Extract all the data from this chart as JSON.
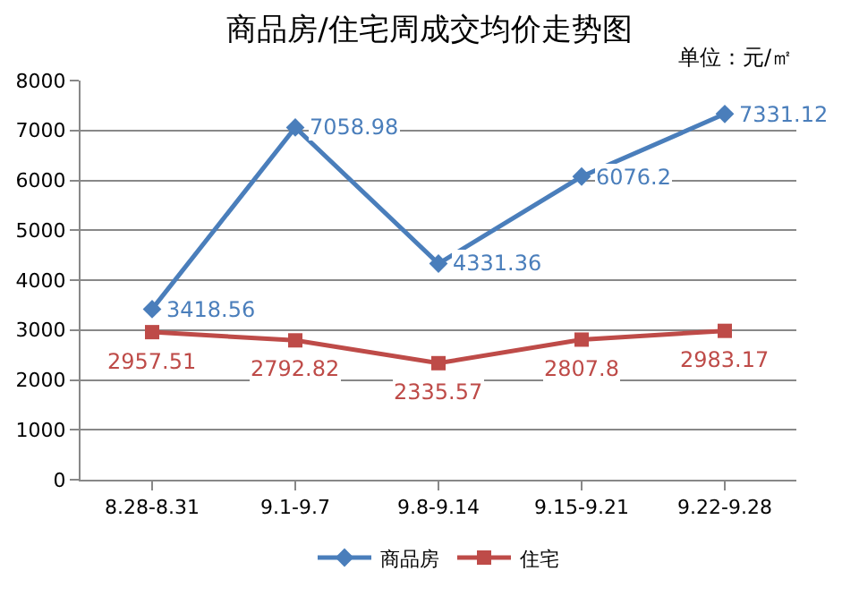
{
  "chart_data": {
    "type": "line",
    "title": "商品房/住宅周成交均价走势图",
    "annotations": [
      "单位：元/㎡"
    ],
    "categories": [
      "8.28-8.31",
      "9.1-9.7",
      "9.8-9.14",
      "9.15-9.21",
      "9.22-9.28"
    ],
    "series": [
      {
        "name": "商品房",
        "color": "#4a7ebb",
        "marker": "diamond",
        "values": [
          3418.56,
          7058.98,
          4331.36,
          6076.2,
          7331.12
        ]
      },
      {
        "name": "住宅",
        "color": "#be4b48",
        "marker": "square",
        "values": [
          2957.51,
          2792.82,
          2335.57,
          2807.8,
          2983.17
        ]
      }
    ],
    "ylim": [
      0,
      8000
    ],
    "yticks": [
      0,
      1000,
      2000,
      3000,
      4000,
      5000,
      6000,
      7000,
      8000
    ],
    "grid": "y",
    "legend": "bottom",
    "data_labels": true,
    "line_style": "solid"
  }
}
